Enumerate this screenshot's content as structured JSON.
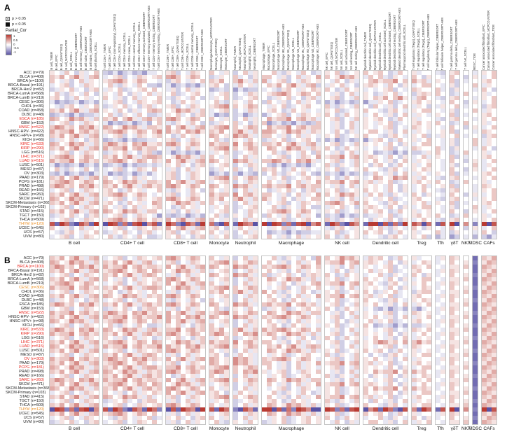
{
  "chart_data": {
    "type": "heatmap",
    "description_labels": {
      "panel_a": "A",
      "panel_b": "B"
    },
    "legend": {
      "p_items": [
        {
          "label": "p > 0.05",
          "filled": false
        },
        {
          "label": "p < 0.05",
          "filled": true
        }
      ],
      "scale_title": "Partial_Cor",
      "scale_ticks": [
        "1",
        "0.5",
        "0",
        "-0.5",
        "-1"
      ],
      "positive_color": "#b93a32",
      "negative_color": "#5a53a5",
      "highlight_colors": {
        "red": "#e8241c",
        "orange": "#e8891a"
      }
    },
    "value_encoding": {
      "alphabet": "abcdefghijklmno",
      "min": -1,
      "max": 1
    },
    "row_labels": [
      "ACC (n=79)",
      "BLCA (n=408)",
      "BRCA (n=1100)",
      "BRCA-Basal (n=191)",
      "BRCA-Her2 (n=82)",
      "BRCA-LumA (n=568)",
      "BRCA-LumB (n=219)",
      "CESC (n=306)",
      "CHOL (n=36)",
      "COAD (n=458)",
      "DLBC (n=48)",
      "ESCA (n=185)",
      "GBM (n=153)",
      "HNSC (n=522)",
      "HNSC-HPV- (n=422)",
      "HNSC-HPV+ (n=98)",
      "KICH (n=66)",
      "KIRC (n=533)",
      "KIRP (n=290)",
      "LGG (n=516)",
      "LIHC (n=371)",
      "LUAD (n=515)",
      "LUSC (n=501)",
      "MESO (n=87)",
      "OV (n=303)",
      "PAAD (n=179)",
      "PCPG (n=181)",
      "PRAD (n=498)",
      "READ (n=166)",
      "SARC (n=260)",
      "SKCM (n=471)",
      "SKCM-Metastasis (n=368)",
      "SKCM-Primary (n=103)",
      "STAD (n=415)",
      "TGCT (n=150)",
      "THCA (n=509)",
      "THYM (n=120)",
      "UCEC (n=545)",
      "UCS (n=57)",
      "UVM (n=80)"
    ],
    "groups": [
      {
        "label": "B cell",
        "columns": [
          "B cell_TIMER",
          "B cell_EPIC",
          "B cell_QUANTISEQ",
          "B cell_MCPCOUNTER",
          "B cell_XCELL",
          "B cell memory_CIBERSORT",
          "B cell memory_CIBERSORT-ABS",
          "B cell naive_CIBERSORT",
          "B cell naive_CIBERSORT-ABS",
          "B cell plasma_XCELL"
        ]
      },
      {
        "label": "CD4+ T cell",
        "columns": [
          "T cell CD4+_TIMER",
          "T cell CD4+_EPIC",
          "T cell CD4+ (non-regulatory)_QUANTISEQ",
          "T cell CD4+_XCELL",
          "T cell CD4+ memory_XCELL",
          "T cell CD4+ naive_XCELL",
          "T cell CD4+ central memory_XCELL",
          "T cell CD4+ effector memory_XCELL",
          "T cell CD4+ memory activated_CIBERSORT",
          "T cell CD4+ memory activated_CIBERSORT-ABS",
          "T cell CD4+ memory resting_CIBERSORT",
          "T cell CD4+ memory resting_CIBERSORT-ABS"
        ]
      },
      {
        "label": "CD8+ T cell",
        "columns": [
          "T cell CD8+_TIMER",
          "T cell CD8+_EPIC",
          "T cell CD8+_QUANTISEQ",
          "T cell CD8+_MCPCOUNTER",
          "T cell CD8+_XCELL",
          "T cell CD8+ central memory_XCELL",
          "T cell CD8+_CIBERSORT",
          "T cell CD8+_CIBERSORT-ABS"
        ]
      },
      {
        "label": "Monocyte",
        "columns": [
          "Macrophage/Monocyte_MCPCOUNTER",
          "Monocyte_QUANTISEQ",
          "Monocyte_XCELL",
          "Monocyte_CIBERSORT"
        ]
      },
      {
        "label": "Neutrophil",
        "columns": [
          "Neutrophil_TIMER",
          "Neutrophil_QUANTISEQ",
          "Neutrophil_MCPCOUNTER",
          "Neutrophil_XCELL",
          "Neutrophil_CIBERSORT"
        ]
      },
      {
        "label": "Macrophage",
        "columns": [
          "Macrophage_TIMER",
          "Macrophage_EPIC",
          "Macrophage_XCELL",
          "Macrophage M0_CIBERSORT",
          "Macrophage M0_CIBERSORT-ABS",
          "Macrophage M1_QUANTISEQ",
          "Macrophage M1_XCELL",
          "Macrophage M1_CIBERSORT",
          "Macrophage M1_CIBERSORT-ABS",
          "Macrophage M2_QUANTISEQ",
          "Macrophage M2_CIBERSORT",
          "Macrophage M2_CIBERSORT-ABS"
        ]
      },
      {
        "label": "NK cell",
        "columns": [
          "NK cell_EPIC",
          "NK cell_QUANTISEQ",
          "NK cell_MCPCOUNTER",
          "NK cell_XCELL",
          "NK cell activated_CIBERSORT",
          "NK cell resting_CIBERSORT",
          "NK cell resting_CIBERSORT-ABS"
        ]
      },
      {
        "label": "Dendritic cell",
        "columns": [
          "Myeloid dendritic cell_TIMER",
          "Myeloid dendritic cell_QUANTISEQ",
          "Myeloid dendritic cell_MCPCOUNTER",
          "Myeloid dendritic cell_XCELL",
          "Myeloid dendritic cell activated_XCELL",
          "Myeloid dendritic cell activated_CIBERSORT",
          "Myeloid dendritic cell resting_CIBERSORT",
          "Myeloid dendritic cell resting_CIBERSORT-ABS",
          "Plasmacytoid dendritic cell_XCELL"
        ]
      },
      {
        "label": "Treg",
        "columns": [
          "T cell regulatory (Tregs)_QUANTISEQ",
          "T cell regulatory (Tregs)_XCELL",
          "T cell regulatory (Tregs)_CIBERSORT",
          "T cell regulatory (Tregs)_CIBERSORT-ABS"
        ]
      },
      {
        "label": "Tfh",
        "columns": [
          "T cell follicular helper_CIBERSORT",
          "T cell follicular helper_CIBERSORT-ABS"
        ]
      },
      {
        "label": "γδT",
        "columns": [
          "T cell gamma delta_CIBERSORT",
          "T cell gamma delta_CIBERSORT-ABS"
        ]
      },
      {
        "label": "NKT",
        "columns": [
          "T cell NK_XCELL"
        ]
      },
      {
        "label": "MDSC",
        "columns": [
          "MDSC_TIDE"
        ]
      },
      {
        "label": "CAFs",
        "columns": [
          "Cancer associated fibroblast_EPIC",
          "Cancer associated fibroblast_MCPCOUNTER",
          "Cancer associated fibroblast_TIDE"
        ]
      }
    ],
    "panels": [
      {
        "label": "A",
        "show_column_headers": true,
        "red_rows": [
          "ESCA (n=185)",
          "HNSC (n=522)",
          "KIRC (n=533)",
          "KIRP (n=290)",
          "LIHC (n=371)",
          "LUAD (n=515)"
        ],
        "orange_rows": [
          "THYM (n=120)"
        ],
        "matrix": [
          "ihgjhfighjfegdfgefdgghijfhgjihjhgifhjgihhjgfihgjhfgihjfghijhijhfgjhighhgfijhgihj",
          "jikhjligjkghijfhgjihijkljhikjhfgihjghfijjhgifhjgihkjhiljkigjhjgfihgjhfihgjhfighj",
          "jhgifhjgihijkljhikjhhgfijhgihjjikhjligjkghijfhgjihihgjhfighjkijjlhjkijgihjfghijh",
          "ghijfhgjihhjgfihgjhffegdfgefdgijhfgjhighjikhjligjkfgihjghfijihgjhfighjjhgifhjgih",
          "fgihjghfijgihjfghijhjhgifhjgihefgfdgeffghgfijhgihjijhfgjhighghijfhgjihhjgfihgjhf",
          "hjgfihgjhfihgjhfighjgihjfghijhghijfhgjihijkljhikjhjhgifhjgihfgihjghfijijhfgjhigh",
          "ijhfgjhighjhgifhjgihhjgfihgjhfgihjfghijhfgihjghfijghijfhgjihjikhjligjkhgfijhgihj",
          "gdfefgdfgeghijfhgjihijhfgjhighhjgfihgjhfjhgifhjgihfegdfgefdggihjfghijhihgjhfighj",
          "hgfijhgihjfgihjghfijghijfhgjihijkljhikjhgihjfghijhhjgfihgjhfjhgifhjgihfgihjghfij",
          "jikhjligjkihgjhfighjkjhiljkigjghijfhgjihijhfgjhighgihjfghijhhgfijhgihjjhgifhjgih",
          "efgfdgeffghjgfihgjhffgihjghfijgdfefgdfgeghijfhgjihijhfgjhighjhgifhjgihgihjfghijh",
          "kjhiljkigjjikhjligjkijkljhikjhjhgifhjgihkijjlhjkijghijfhgjihijhfgjhighhgfijhgihj",
          "ghijfhgjihgdfefgdfgehjgfihgjhffgihjghfijdfgefdgfefjhgifhjgihgihjfghijhijhfgjhigh",
          "jlkijhkjlikjhiljkigjjikhjligjkijkljhikjhkijjlhjkijjhgifhjgihghijfhgjihihgjhfighj",
          "kijjlhjkijijkljhikjhjlkijhkjlijikhjligjkkjhiljkigjihgjhfighjjhgifhjgihghijfhgjih",
          "jikhjligjkghijfhgjihijhfgjhighkjhiljkigjjhgifhjgihgihjfghijhhgfijhgihjfgihjghfij",
          "fgihjghfijefgfdgeffgghijfhgjihhjgfihgjhfgihjfghijhfegdfgefdgijhfgjhighjhgifhjgih",
          "kjhiljkigjjlkijhkjliijkljhikjhkijjlhjkijjikhjligjkghijfhgjihihgjhfighjjhgifhjgih",
          "jikhjligjkkijjlhjkijjhgifhjgihijkljhikjhkjhiljkigjijhfgjhighghijfhgjihhjgfihgjhf",
          "ghijfhgjihfgihjghfijfegdfgefdggihjfghijhhjgfihgjhfjhgifhjgihefgfdgeffgijhfgjhigh",
          "ijkljhikjhjikhjligjkkjhiljkigjjhgifhjgihghijfhgjihkijjlhjkijihgjhfighjgihjfghijh",
          "kijjlhjkijijkljhikjhjikhjligjkkjhiljkigjjlkijhkjlighijfhgjihjhgifhjgihihgjhfighj",
          "gdfefgdfgeefgfdgeffgfgihjghfijghijfhgjihfegdfgefdghjgfihgjhfijhfgjhighjhgifhjgih",
          "hjgfihgjhfghijfhgjihjhgifhjgihfgihjghfijijhfgjhighgihjfghijhhgfijhgihjihgjhfighj",
          "fegdfgefdggdfefgdfgeghijfhgjihdfgefdgfefhjgfihgjhfefgfdgeffgjhgifhjgihgihjfghijh",
          "jikhjligjkjhgifhjgihghijfhgjihijkljhikjhgihjfghijhijhfgjhighkjhiljkigjhgfijhgihj",
          "ijkljhikjhkjhiljkigjjikhjligjkghijfhgjihjhgifhjgihkijjlhjkijgihjfghijhijhfgjhigh",
          "jlkijhkjlijikhjligjkijkljhikjhkjhiljkigjkijjlhjkijjhgifhjgihihgjhfighjghijfhgjih",
          "ghijfhgjihijhfgjhighhjgfihgjhfjhgifhjgihfgihjghfijgihjfghijhihgjhfighjhgfijhgihj",
          "jikhjligjkijkljhikjhghijfhgjihkijjlhjkijjhgifhjgihkjhiljkigjhjgfihgjhfihgjhfighj",
          "kjhiljkigjghijfhgjihijkljhikjhjikhjligjkihgjhfighjjhgifhjgihgihjfghijhhgfijhgihj",
          "jikhjligjkijhfgjhighkjhiljkigjjhgifhjgihghijfhgjihijkljhikjhhgfijhgihjgihjfghijh",
          "ghijfhgjihjhgifhjgihijhfgjhighgihjfghijhhjgfihgjhffgihjghfijihgjhfighjjhgifhjgih",
          "jikhjligjkkjhiljkigjjhgifhjgihghijfhgjihijkljhikjhgihjfghijhijhfgjhighihgjhfighj",
          "fgihjghfijghijfhgjihgdfefgdfgehjgfihgjhfjhgifhjgihefgfdgeffggihjfghijhijhfgjhigh",
          "ghijfhgjihijkljhikjhjikhjligjkjhgifhjgihgihjfghijhhjgfihgjhfihgjhfighjhgfijhgihj",
          "nbomcanlboaoncmbnoalnbomcanlbomcanbomlaoaoncmbnoalnbomcanlbooanbmconlambnoalcoan",
          "jhgifhjgihghijfhgjihjikhjligjkijhfgjhighgihjfghijhhgfijhgihjhjgfihgjhfihgjhfighj",
          "hgfijhgihjfgihjghfijghijfhgjihjhgifhjgihefgfdgeffggihjfghijhijhfgjhighhjgfihgjhf",
          "ghijfhgjihhjgfihgjhffgihjghfijgihjfghijhjhgifhjgihijhfgjhighhgfijhgihjfegdfgefdg"
        ]
      },
      {
        "label": "B",
        "show_column_headers": false,
        "red_rows": [
          "BRCA (n=1100)",
          "HNSC (n=522)",
          "KIRC (n=533)",
          "KIRP (n=290)",
          "LIHC (n=371)",
          "LUAD (n=515)",
          "OV (n=303)",
          "PCPG (n=181)",
          "SARC (n=260)"
        ],
        "orange_rows": [
          "CESC (n=306)",
          "THYM (n=120)"
        ],
        "matrix": [
          "jikhjligjkghijfhgjihijkljhikjhjhgifhjgihhjgfihgjhfkjhiljkigjijhfgjhighhgijihbjik",
          "kjhiljkigjjikhjligjkghijfhgjihijkljhikjhjhgifhjgihkijjlhjkijihgjhfighjighjhicikj",
          "jlkijhkjlikijjlhjkijjikhjligjkkjhiljkigjijkljhikjhjhgifhjgihghijfhgjihjhgiijbkji",
          "jikhjligjkijkljhikjhkjhiljkigjghijfhgjihjhgifhjgihihgjhfighjgihjfghijhhgijihbjik",
          "ghijfhgjihjikhjligjkjhgifhjgihkjhiljkigjfgihjghfijijhfgjhighhjgfihgjhfighjhicikj",
          "jikhjligjkjhgifhjgihijkljhikjhghijfhgjihkjhiljkigjgihjfghijhihgjhfighjjhgiijbkji",
          "ijkljhikjhghijfhgjihjikhjligjkjhgifhjgihihgjhfighjkijjlhjkijhgfijhgihjhgijihbjik",
          "kijjlhjkijjikhjligjkkjhiljkigjijkljhikjhghijfhgjihjhgifhjgihihgjhfighjighjhicikj",
          "ghijfhgjihijhfgjhighjhgifhjgihjikhjligjkhjgfihgjhfgihjfghijhfgihjghfijjhgiijbkji",
          "jikhjligjkkjhiljkigjijkljhikjhghijfhgjihjhgifhjgihkijjlhjkijgihjfghijhhgijihbjik",
          "fgihjghfijghijfhgjihhjgfihgjhfjhgifhjgihijhfgjhighgihjfghijhhgfijhgihjighjhicikj",
          "jlkijhkjlijikhjligjkijkljhikjhkjhiljkigjkijjlhjkijghijfhgjihjhgifhjgihjhgiijbkji",
          "ghijfhgjihfgihjghfijjhgifhjgihhjgfihgjhfgihjfghijhijhfgjhighfegdfgefdghgijihbjik",
          "kijjlhjkijjlkijhkjlijikhjligjkijkljhikjhkjhiljkigjjhgifhjgihghijfhgjihighjhicikj",
          "jikhjligjkkijjlhjkijjlkijhkjlikjhiljkigjijkljhikjhghijfhgjihjhgifhjgihjhgiijbkji",
          "kjhiljkigjijkljhikjhjikhjligjkghijfhgjihjhgifhjgihihgjhfighjgihjfghijhhgijihbjik",
          "ghijfhgjihhjgfihgjhffgihjghfijjhgifhjgihijhfgjhighgihjfghijhefgfdgeffgighjhicikj",
          "jlkijhkjlikjhiljkigjkijjlhjkijjikhjligjkijkljhikjhjhgifhjgihghijfhgjihjhgiijbkji",
          "kijjlhjkijjikhjligjkijkljhikjhjlkijhkjlikjhiljkigjghijfhgjihihgjhfighjhgijihbjik",
          "ghijfhgjihjhgifhjgihfgihjghfijgihjfghijhhjgfihgjhfijhfgjhighjhgifhjgihighjhicikj",
          "jikhjligjkijkljhikjhkjhiljkigjkijjlhjkijjhgifhjgihghijfhgjihjlkijhkjlijhgiijbkji",
          "kjhiljkigjkijjlhjkijjlkijhkjliijkljhikjhjikhjligjkjhgifhjgihghijfhgjihhgijihbjik",
          "jikhjligjkghijfhgjihijkljhikjhjhgifhjgihkjhiljkigjgihjfghijhijhfgjhighighjhicikj",
          "ghijfhgjihjikhjligjkjhgifhjgihijhfgjhighgihjfghijhhjgfihgjhfhgfijhgihjjhgiijbkji",
          "kijjlhjkijjlkijhkjlijikhjligjkkjhiljkigjijkljhikjhghijfhgjihjhgifhjgihhgijihbjik",
          "jikhjligjkijkljhikjhghijfhgjihkjhiljkigjjhgifhjgihkijjlhjkijgihjfghijhighjhicikj",
          "kjhiljkigjjikhjligjkkijjlhjkijijkljhikjhjhgifhjgihghijfhgjihihgjhfighjjhgiijbkji",
          "jikhjligjkkjhiljkigjijkljhikjhjlkijhkjlighijfhgjihjhgifhjgihkijjlhjkijhgijihbjik",
          "ghijfhgjihjikhjligjkijhfgjhighjhgifhjgihgihjfghijhhjgfihgjhfihgjhfighjighjhicikj",
          "jlkijhkjlikijjlhjkijjikhjligjkijkljhikjhkjhiljkigjjhgifhjgihghijfhgjihjhgiijbkji",
          "jikhjligjkijkljhikjhkjhiljkigjghijfhgjihjhgifhjgihkijjlhjkijihgjhfighjhgijihbjik",
          "kjhiljkigjjikhjligjkijkljhikjhjhgifhjgihghijfhgjihgihjfghijhkijjlhjkijighjhicikj",
          "ghijfhgjihjhgifhjgihjikhjligjkijhfgjhighhjgfihgjhfgihjfghijhihgjhfighjjhgiijbkji",
          "jikhjligjkkjhiljkigjghijfhgjihijkljhikjhjhgifhjgihkijjlhjkijgihjfghijhhgijihbjik",
          "ghijfhgjihfgihjghfijjhgifhjgihgihjfghijhijhfgjhighhjgfihgjhfjhgifhjgihighjhicikj",
          "jikhjligjkghijfhgjihijkljhikjhjhgifhjgihkjhiljkigjgihjfghijhhgfijhgihjjhgiijbkji",
          "aoncmbnoalnbomcanlbomcanbomlaonbomcanlbooanbmconlaaoncmbnoalnbomcanlbombnoalcoan",
          "jikhjligjkijkljhikjhjhgifhjgihghijfhgjihkjhiljkigjgihjfghijhijhfgjhighhgijihbjik",
          "ghijfhgjihhgfijhgihjfgihjghfijjhgifhjgihgihjfghijhijhfgjhighhjgfihgjhfighjhicikj",
          "fgihjghfijghijfhgjihjhgifhjgihhjgfihgjhfgihjfghijhihgjhfighjjhgifhjgihjhgiijbkji"
        ]
      }
    ]
  }
}
